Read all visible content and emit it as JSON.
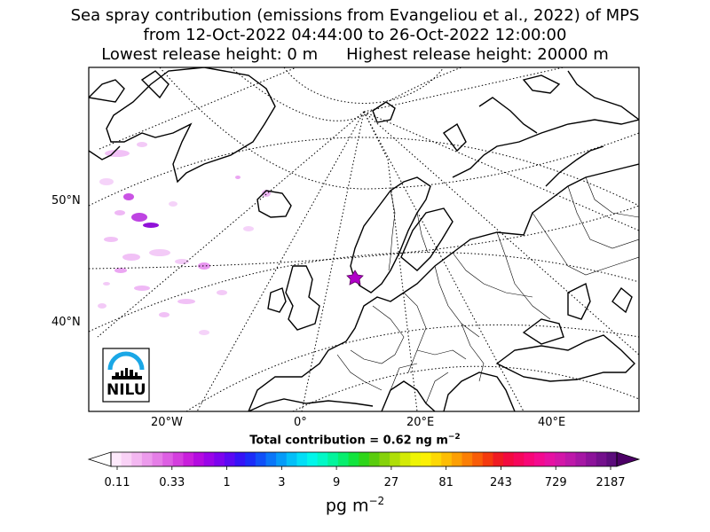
{
  "title": {
    "line1": "Sea spray contribution (emissions from Evangeliou et al., 2022) of MPS",
    "line2": "from 12-Oct-2022 04:44:00 to 26-Oct-2022 12:00:00",
    "line3_left": "Lowest release height: 0 m",
    "line3_right": "Highest release height: 20000 m"
  },
  "map": {
    "lat_labels": [
      "50°N",
      "40°N"
    ],
    "lon_labels": [
      "20°W",
      "0°",
      "20°E",
      "40°E"
    ],
    "release_marker": "star-icon",
    "logo_text": "NILU"
  },
  "total": {
    "prefix": "Total contribution = 0.62 ng m",
    "exponent": "−2"
  },
  "colorbar": {
    "ticks": [
      "0.11",
      "0.33",
      "1",
      "3",
      "9",
      "27",
      "81",
      "243",
      "729",
      "2187"
    ],
    "unit_base": "pg m",
    "unit_exponent": "−2",
    "colors": [
      "#fde9fb",
      "#f9d2f6",
      "#f3b7f1",
      "#ec9bec",
      "#e57ee7",
      "#dd5fe3",
      "#d43ede",
      "#c91edc",
      "#b40be0",
      "#9a04e8",
      "#7d03ee",
      "#5b08f3",
      "#3513f6",
      "#1b2cf8",
      "#1050f8",
      "#0a76f8",
      "#069bf8",
      "#04bff8",
      "#03def6",
      "#02f6ea",
      "#02f8c6",
      "#03f49c",
      "#07ee6e",
      "#12e43e",
      "#2ed51a",
      "#5acc0e",
      "#86d20a",
      "#afde08",
      "#d3ea06",
      "#eef404",
      "#fbf004",
      "#fdd804",
      "#fdbd04",
      "#fc9f04",
      "#fb7f05",
      "#f85d08",
      "#f43a0e",
      "#ef1b22",
      "#f20a3f",
      "#f5065b",
      "#f70677",
      "#f30a8f",
      "#e611a2",
      "#d316a8",
      "#bd18a9",
      "#a517a4",
      "#8c139a",
      "#73108c",
      "#5c0c7c"
    ],
    "under_color": "#ffffff",
    "over_color": "#4c0066"
  }
}
